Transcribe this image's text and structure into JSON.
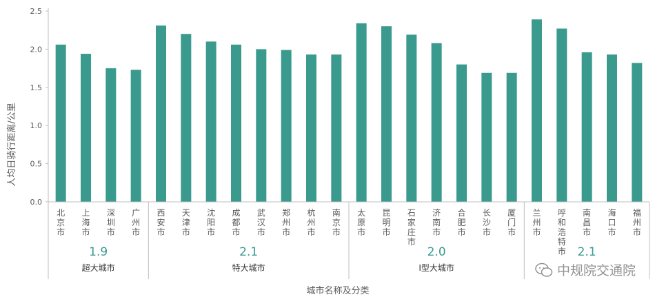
{
  "chart_data": {
    "type": "bar",
    "ylabel": "人均日骑行距离/公里",
    "xlabel": "城市名称及分类",
    "ylim": [
      0,
      2.5
    ],
    "yticks": [
      "0.0",
      "0.5",
      "1.0",
      "1.5",
      "2.0",
      "2.5"
    ],
    "grid": false,
    "bar_color": "#3a9a8e",
    "categories": [
      "北京市",
      "上海市",
      "深圳市",
      "广州市",
      "西安市",
      "天津市",
      "沈阳市",
      "成都市",
      "武汉市",
      "郑州市",
      "杭州市",
      "南京市",
      "太原市",
      "昆明市",
      "石家庄市",
      "济南市",
      "合肥市",
      "长沙市",
      "厦门市",
      "兰州市",
      "呼和浩特市",
      "南昌市",
      "海口市",
      "福州市"
    ],
    "values": [
      2.06,
      1.94,
      1.75,
      1.73,
      2.31,
      2.2,
      2.1,
      2.06,
      2.0,
      1.99,
      1.93,
      1.93,
      2.34,
      2.3,
      2.19,
      2.08,
      1.8,
      1.69,
      1.69,
      2.39,
      2.27,
      1.96,
      1.93,
      1.82
    ],
    "groups": [
      {
        "name": "超大城市",
        "average": "1.9",
        "start": 0,
        "end": 3
      },
      {
        "name": "特大城市",
        "average": "2.1",
        "start": 4,
        "end": 11
      },
      {
        "name": "Ⅰ型大城市",
        "average": "2.0",
        "start": 12,
        "end": 18
      },
      {
        "name": "",
        "average": "2.1",
        "start": 19,
        "end": 23
      }
    ]
  },
  "watermark": {
    "text": "中规院交通院",
    "icon": "wechat-icon"
  }
}
